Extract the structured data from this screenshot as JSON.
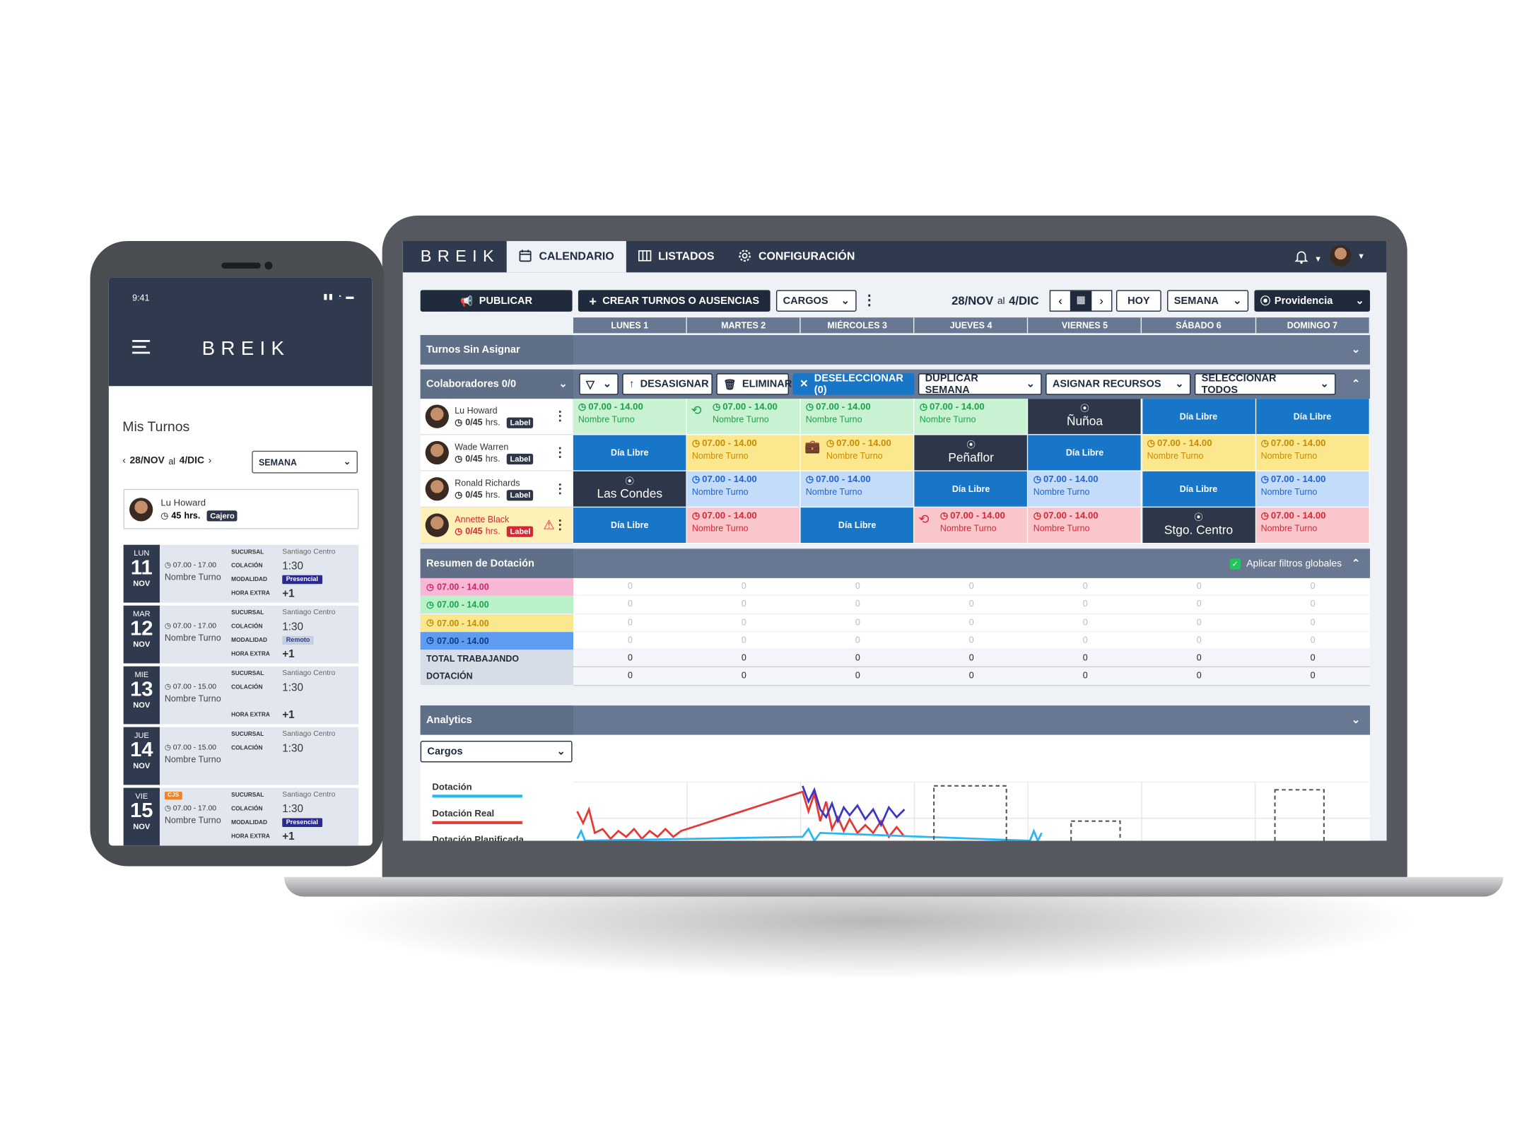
{
  "app": {
    "logo": "BREIK",
    "nav": [
      {
        "label": "CALENDARIO",
        "active": true
      },
      {
        "label": "LISTADOS"
      },
      {
        "label": "CONFIGURACIÓN"
      }
    ]
  },
  "toolbar": {
    "publish": "PUBLICAR",
    "create": "CREAR TURNOS O AUSENCIAS",
    "cargos": "CARGOS",
    "range_start": "28/NOV",
    "range_mid": "al",
    "range_end": "4/DIC",
    "today": "HOY",
    "view": "SEMANA",
    "location": "Providencia"
  },
  "days": [
    "LUNES 1",
    "MARTES 2",
    "MIÉRCOLES 3",
    "JUEVES 4",
    "VIERNES 5",
    "SÁBADO 6",
    "DOMINGO 7"
  ],
  "unassigned_title": "Turnos Sin Asignar",
  "collab": {
    "title": "Colaboradores 0/0",
    "actions": [
      "DESASIGNAR",
      "ELIMINAR",
      "DESELECCIONAR (0)",
      "DUPLICAR SEMANA",
      "ASIGNAR RECURSOS",
      "SELECCIONAR TODOS"
    ]
  },
  "employees": [
    {
      "name": "Lu Howard",
      "hours": "0/45",
      "hrs": "hrs.",
      "label": "Label",
      "warn": false,
      "cells": [
        {
          "kind": "green",
          "time": "07.00 - 14.00",
          "name": "Nombre Turno"
        },
        {
          "kind": "green",
          "time": "07.00 - 14.00",
          "name": "Nombre Turno",
          "icon": "clock-arrow"
        },
        {
          "kind": "green",
          "time": "07.00 - 14.00",
          "name": "Nombre Turno"
        },
        {
          "kind": "green",
          "time": "07.00 - 14.00",
          "name": "Nombre Turno"
        },
        {
          "kind": "loc",
          "text": "Ñuñoa"
        },
        {
          "kind": "day",
          "text": "Día Libre"
        },
        {
          "kind": "day",
          "text": "Día Libre"
        }
      ]
    },
    {
      "name": "Wade Warren",
      "hours": "0/45",
      "hrs": "hrs.",
      "label": "Label",
      "warn": false,
      "cells": [
        {
          "kind": "day",
          "text": "Día Libre"
        },
        {
          "kind": "yellow",
          "time": "07.00 - 14.00",
          "name": "Nombre Turno"
        },
        {
          "kind": "yellow",
          "time": "07.00 - 14.00",
          "name": "Nombre Turno",
          "icon": "briefcase"
        },
        {
          "kind": "loc",
          "text": "Peñaflor"
        },
        {
          "kind": "day",
          "text": "Día Libre"
        },
        {
          "kind": "yellow",
          "time": "07.00 - 14.00",
          "name": "Nombre Turno"
        },
        {
          "kind": "yellow",
          "time": "07.00 - 14.00",
          "name": "Nombre Turno"
        }
      ]
    },
    {
      "name": "Ronald Richards",
      "hours": "0/45",
      "hrs": "hrs.",
      "label": "Label",
      "warn": false,
      "cells": [
        {
          "kind": "loc",
          "text": "Las Condes"
        },
        {
          "kind": "blue",
          "time": "07.00 - 14.00",
          "name": "Nombre Turno"
        },
        {
          "kind": "blue",
          "time": "07.00 - 14.00",
          "name": "Nombre Turno"
        },
        {
          "kind": "day",
          "text": "Día Libre"
        },
        {
          "kind": "blue",
          "time": "07.00 - 14.00",
          "name": "Nombre Turno"
        },
        {
          "kind": "day",
          "text": "Día Libre"
        },
        {
          "kind": "blue",
          "time": "07.00 - 14.00",
          "name": "Nombre Turno"
        }
      ]
    },
    {
      "name": "Annette Black",
      "hours": "0/45",
      "hrs": "hrs.",
      "label": "Label",
      "warn": true,
      "cells": [
        {
          "kind": "day",
          "text": "Día Libre"
        },
        {
          "kind": "red",
          "time": "07.00 - 14.00",
          "name": "Nombre Turno"
        },
        {
          "kind": "day",
          "text": "Día Libre"
        },
        {
          "kind": "red",
          "time": "07.00 - 14.00",
          "name": "Nombre Turno",
          "icon": "clock-arrow"
        },
        {
          "kind": "red",
          "time": "07.00 - 14.00",
          "name": "Nombre Turno"
        },
        {
          "kind": "loc",
          "text": "Stgo. Centro"
        },
        {
          "kind": "red",
          "time": "07.00 - 14.00",
          "name": "Nombre Turno"
        }
      ]
    }
  ],
  "summary": {
    "title": "Resumen de Dotación",
    "filter": "Aplicar filtros globales",
    "rows": [
      {
        "label": "07.00 - 14.00",
        "color": "#f7b8d6",
        "text": "#d0246e",
        "values": [
          "0",
          "0",
          "0",
          "0",
          "0",
          "0",
          "0"
        ]
      },
      {
        "label": "07.00 - 14.00",
        "color": "#b9f1c8",
        "text": "#1aa24a",
        "values": [
          "0",
          "0",
          "0",
          "0",
          "0",
          "0",
          "0"
        ]
      },
      {
        "label": "07.00 - 14.00",
        "color": "#fbe88e",
        "text": "#c88a00",
        "values": [
          "0",
          "0",
          "0",
          "0",
          "0",
          "0",
          "0"
        ]
      },
      {
        "label": "07.00 - 14.00",
        "color": "#5d9cf0",
        "text": "#0b3a8a",
        "values": [
          "0",
          "0",
          "0",
          "0",
          "0",
          "0",
          "0"
        ]
      }
    ],
    "totals": [
      {
        "label": "TOTAL TRABAJANDO",
        "values": [
          "0",
          "0",
          "0",
          "0",
          "0",
          "0",
          "0"
        ]
      },
      {
        "label": "DOTACIÓN",
        "values": [
          "0",
          "0",
          "0",
          "0",
          "0",
          "0",
          "0"
        ]
      }
    ]
  },
  "analytics": {
    "title": "Analytics",
    "select": "Cargos",
    "legend": [
      {
        "label": "Dotación",
        "color": "#29b6f6"
      },
      {
        "label": "Dotación Real",
        "color": "#e53935"
      },
      {
        "label": "Dotación Planificada",
        "color": "#2b2b8f"
      }
    ]
  },
  "phone": {
    "time": "9:41",
    "logo": "BREIK",
    "title": "Mis Turnos",
    "range": "28/NOV",
    "range_mid": "al",
    "range_end": "4/DIC",
    "view": "SEMANA",
    "user": {
      "name": "Lu Howard",
      "hours": "45",
      "hrs": "hrs.",
      "role": "Cajero"
    },
    "keys": {
      "sucursal": "SUCURSAL",
      "colacion": "COLACIÓN",
      "modalidad": "MODALIDAD",
      "extra": "HORA EXTRA"
    },
    "days": [
      {
        "dn": "LUN",
        "dd": "11",
        "dm": "NOV",
        "time": "07.00 - 17.00",
        "name": "Nombre Turno",
        "branch": "Santiago Centro",
        "break": "1:30",
        "mode": "Presencial",
        "extra": "+1"
      },
      {
        "dn": "MAR",
        "dd": "12",
        "dm": "NOV",
        "time": "07.00 - 17.00",
        "name": "Nombre Turno",
        "branch": "Santiago Centro",
        "break": "1:30",
        "mode": "Remoto",
        "extra": "+1"
      },
      {
        "dn": "MIE",
        "dd": "13",
        "dm": "NOV",
        "time": "07.00 - 15.00",
        "name": "Nombre Turno",
        "branch": "Santiago Centro",
        "break": "1:30",
        "mode": "",
        "extra": "+1"
      },
      {
        "dn": "JUE",
        "dd": "14",
        "dm": "NOV",
        "time": "07.00 - 15.00",
        "name": "Nombre Turno",
        "branch": "Santiago Centro",
        "break": "1:30",
        "mode": "",
        "extra": ""
      },
      {
        "dn": "VIE",
        "dd": "15",
        "dm": "NOV",
        "time": "07.00 - 17.00",
        "name": "Nombre Turno",
        "branch": "Santiago Centro",
        "break": "1:30",
        "mode": "Presencial",
        "extra": "+1",
        "tag": "CJS"
      }
    ]
  },
  "colors": {
    "navy": "#2f3a4e",
    "slate": "#687892",
    "accent": "#1876c9"
  }
}
